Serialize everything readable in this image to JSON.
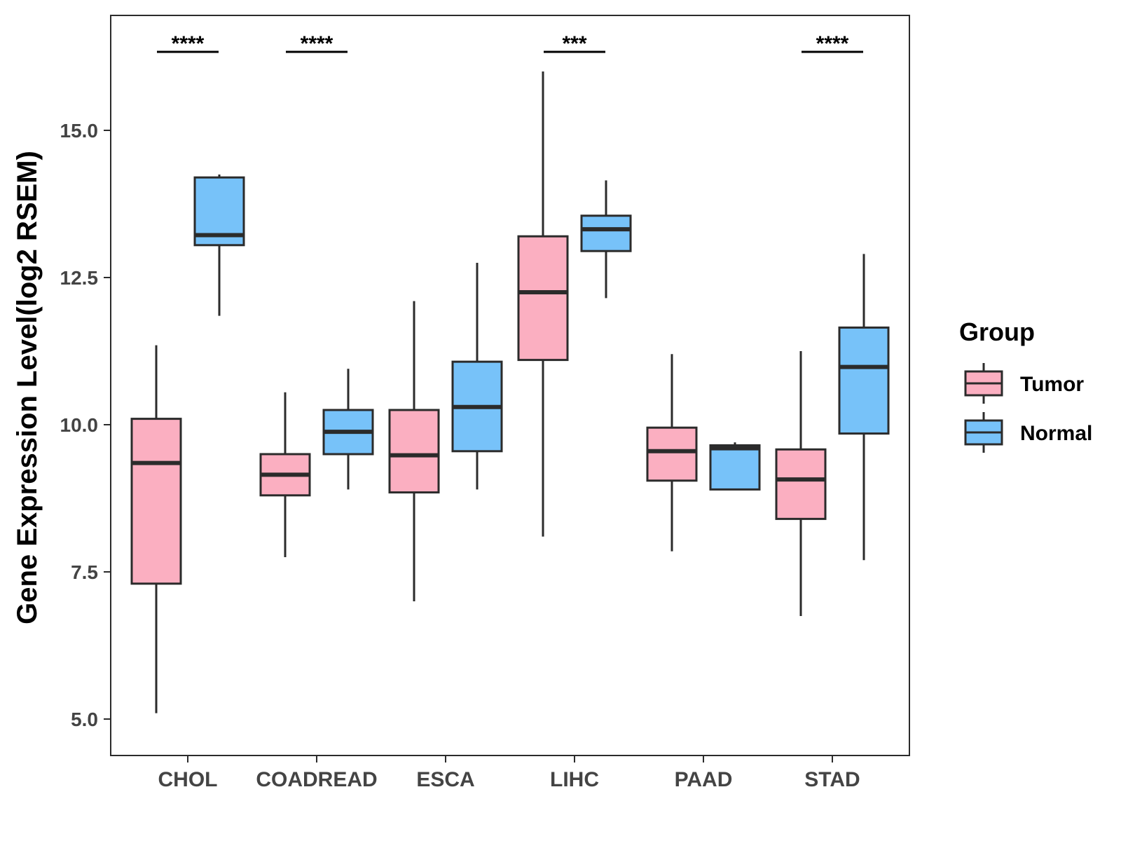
{
  "chart_data": {
    "type": "boxplot",
    "ylabel": "Gene Expression Level(log2 RSEM)",
    "xlabel": "",
    "ylim": [
      4.4,
      17.0
    ],
    "yticks": [
      5.0,
      7.5,
      10.0,
      12.5,
      15.0
    ],
    "ytick_labels": [
      "5.0",
      "7.5",
      "10.0",
      "12.5",
      "15.0"
    ],
    "categories": [
      "CHOL",
      "COADREAD",
      "ESCA",
      "LIHC",
      "PAAD",
      "STAD"
    ],
    "legend": {
      "title": "Group",
      "position": "right",
      "entries": [
        {
          "name": "Tumor",
          "color": "#FBAFC1"
        },
        {
          "name": "Normal",
          "color": "#77C2F9"
        }
      ]
    },
    "series": [
      {
        "name": "Tumor",
        "color": "#FBAFC1",
        "boxes": [
          {
            "category": "CHOL",
            "min": 5.1,
            "q1": 7.3,
            "median": 9.35,
            "q3": 10.1,
            "max": 11.35
          },
          {
            "category": "COADREAD",
            "min": 7.75,
            "q1": 8.8,
            "median": 9.15,
            "q3": 9.5,
            "max": 10.55
          },
          {
            "category": "ESCA",
            "min": 7.0,
            "q1": 8.85,
            "median": 9.48,
            "q3": 10.25,
            "max": 12.1
          },
          {
            "category": "LIHC",
            "min": 8.1,
            "q1": 11.1,
            "median": 12.25,
            "q3": 13.2,
            "max": 16.0
          },
          {
            "category": "PAAD",
            "min": 7.85,
            "q1": 9.05,
            "median": 9.55,
            "q3": 9.95,
            "max": 11.2
          },
          {
            "category": "STAD",
            "min": 6.75,
            "q1": 8.4,
            "median": 9.07,
            "q3": 9.58,
            "max": 11.25
          }
        ]
      },
      {
        "name": "Normal",
        "color": "#77C2F9",
        "boxes": [
          {
            "category": "CHOL",
            "min": 11.85,
            "q1": 13.05,
            "median": 13.22,
            "q3": 14.2,
            "max": 14.25
          },
          {
            "category": "COADREAD",
            "min": 8.9,
            "q1": 9.5,
            "median": 9.88,
            "q3": 10.25,
            "max": 10.95
          },
          {
            "category": "ESCA",
            "min": 8.9,
            "q1": 9.55,
            "median": 10.3,
            "q3": 11.07,
            "max": 12.75
          },
          {
            "category": "LIHC",
            "min": 12.15,
            "q1": 12.95,
            "median": 13.32,
            "q3": 13.55,
            "max": 14.15
          },
          {
            "category": "PAAD",
            "min": 8.9,
            "q1": 8.9,
            "median": 9.6,
            "q3": 9.65,
            "max": 9.7
          },
          {
            "category": "STAD",
            "min": 7.7,
            "q1": 9.85,
            "median": 10.98,
            "q3": 11.65,
            "max": 12.9
          }
        ]
      }
    ],
    "annotations": [
      {
        "category": "CHOL",
        "text": "****",
        "y": 16.4
      },
      {
        "category": "COADREAD",
        "text": "****",
        "y": 16.4
      },
      {
        "category": "LIHC",
        "text": "***",
        "y": 16.4
      },
      {
        "category": "STAD",
        "text": "****",
        "y": 16.4
      }
    ]
  }
}
